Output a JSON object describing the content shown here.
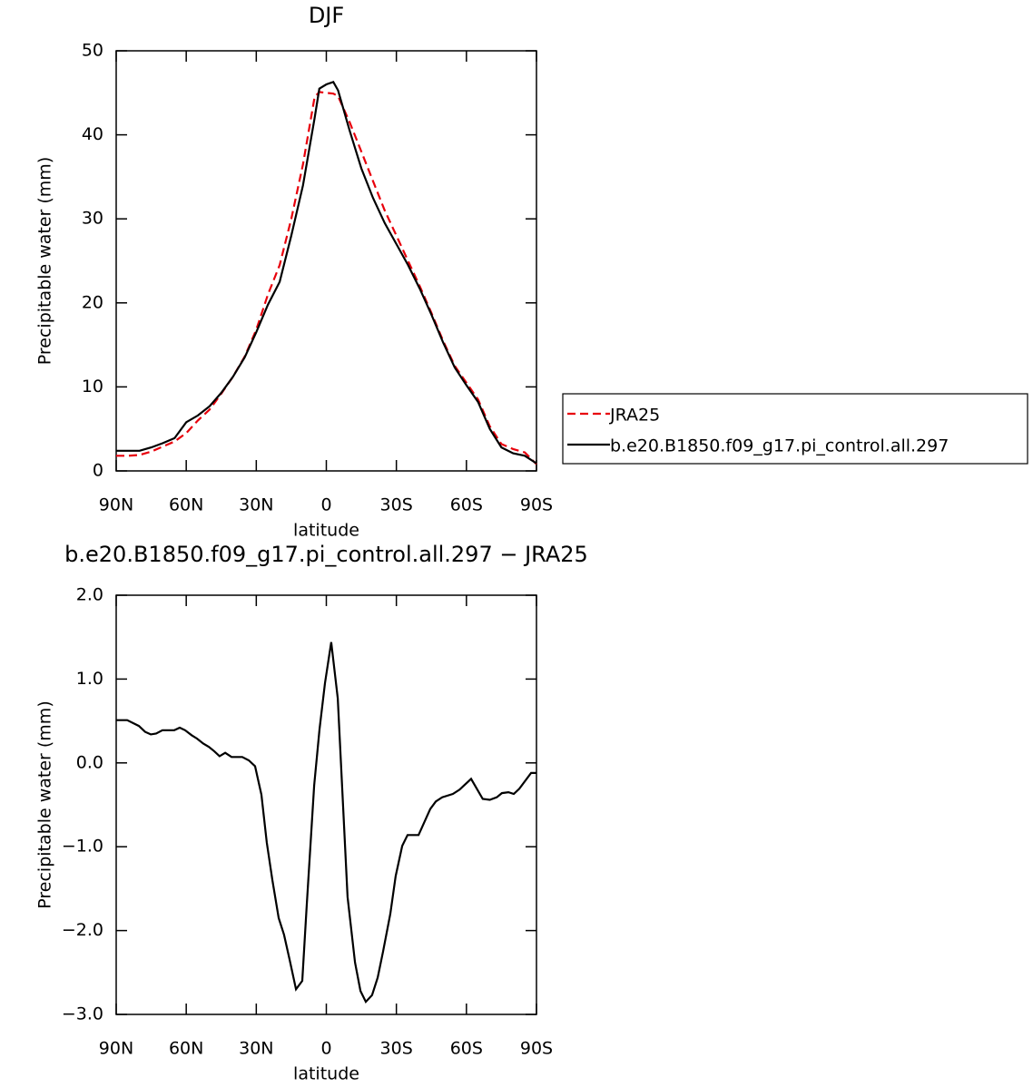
{
  "chart_data": [
    {
      "type": "line",
      "title": "DJF",
      "x_label": "latitude",
      "y_label": "Precipitable water (mm)",
      "x": [
        90,
        85,
        80,
        75,
        70,
        65,
        60,
        55,
        50,
        45,
        40,
        35,
        30,
        25,
        20,
        15,
        10,
        5,
        3,
        0,
        -3,
        -5,
        -10,
        -15,
        -20,
        -25,
        -30,
        -35,
        -40,
        -45,
        -50,
        -55,
        -60,
        -65,
        -70,
        -75,
        -80,
        -85,
        -90
      ],
      "series": [
        {
          "name": "JRA25",
          "color": "#e8000b",
          "linestyle": "dashed",
          "values": [
            1.8,
            1.8,
            1.9,
            2.3,
            2.9,
            3.5,
            4.5,
            6,
            7.3,
            9.2,
            11.2,
            13.6,
            16.8,
            21,
            24.5,
            30,
            36.5,
            44.5,
            45.1,
            45,
            44.9,
            44.6,
            41.5,
            38,
            34.5,
            31,
            28,
            25,
            22,
            18.8,
            15.5,
            12.5,
            10.5,
            8.5,
            5.3,
            3.2,
            2.6,
            2.2,
            0.8
          ]
        },
        {
          "name": "b.e20.B1850.f09_g17.pi_control.all.297",
          "color": "#000000",
          "linestyle": "solid",
          "values": [
            2.4,
            2.4,
            2.4,
            2.8,
            3.3,
            3.9,
            5.8,
            6.6,
            7.7,
            9.3,
            11.2,
            13.5,
            16.5,
            19.8,
            22.5,
            28,
            34,
            42,
            45.5,
            46,
            46.3,
            45.3,
            40.5,
            36,
            32.5,
            29.5,
            27,
            24.5,
            21.7,
            18.6,
            15.3,
            12.3,
            10.2,
            8.2,
            5,
            2.8,
            2.1,
            1.8,
            0.9
          ]
        }
      ],
      "xlim": [
        90,
        -90
      ],
      "xticks": [
        {
          "value": 90,
          "label": "90N"
        },
        {
          "value": 60,
          "label": "60N"
        },
        {
          "value": 30,
          "label": "30N"
        },
        0,
        {
          "value": -30,
          "label": "30S"
        },
        {
          "value": -60,
          "label": "60S"
        },
        {
          "value": -90,
          "label": "90S"
        }
      ],
      "ylim": [
        0,
        50
      ],
      "yticks": [
        0,
        10,
        20,
        30,
        40,
        50
      ],
      "legend": "right"
    },
    {
      "type": "line",
      "title": "b.e20.B1850.f09_g17.pi_control.all.297 − JRA25",
      "x_label": "latitude",
      "y_label": "Precipitable water (mm)",
      "x": [
        90,
        85.3,
        80.3,
        77.6,
        75.2,
        72.9,
        70.2,
        67.8,
        65.1,
        62.8,
        60.5,
        57.7,
        55.4,
        52.7,
        50.3,
        48,
        45.7,
        43.3,
        40.6,
        36,
        33.2,
        30.5,
        27.8,
        25.5,
        23.1,
        20.4,
        18.1,
        15.7,
        13,
        10.3,
        8.4,
        5.2,
        2.9,
        0.6,
        -2.1,
        -4.9,
        -9.1,
        -12.3,
        -14.6,
        -16.9,
        -19.6,
        -22,
        -24.3,
        -27.4,
        -29.7,
        -32.5,
        -34.8,
        -39.5,
        -44.5,
        -46.9,
        -49.6,
        -54.2,
        -57,
        -62,
        -67,
        -70,
        -73,
        -75.2,
        -78,
        -80.3,
        -82.6,
        -87.7,
        -90
      ],
      "color": "#000000",
      "values": [
        0.51,
        0.51,
        0.44,
        0.37,
        0.34,
        0.35,
        0.39,
        0.39,
        0.39,
        0.42,
        0.39,
        0.33,
        0.29,
        0.23,
        0.19,
        0.14,
        0.08,
        0.12,
        0.07,
        0.07,
        0.03,
        -0.04,
        -0.38,
        -0.95,
        -1.4,
        -1.85,
        -2.05,
        -2.35,
        -2.7,
        -2.6,
        -1.7,
        -0.27,
        0.4,
        0.95,
        1.44,
        0.77,
        -1.6,
        -2.38,
        -2.72,
        -2.85,
        -2.77,
        -2.56,
        -2.25,
        -1.8,
        -1.35,
        -0.99,
        -0.86,
        -0.86,
        -0.55,
        -0.46,
        -0.41,
        -0.37,
        -0.32,
        -0.19,
        -0.43,
        -0.44,
        -0.41,
        -0.36,
        -0.35,
        -0.37,
        -0.31,
        -0.12,
        -0.12
      ],
      "xlim": [
        90,
        -90
      ],
      "xticks": [
        {
          "value": 90,
          "label": "90N"
        },
        {
          "value": 60,
          "label": "60N"
        },
        {
          "value": 30,
          "label": "30N"
        },
        0,
        {
          "value": -30,
          "label": "30S"
        },
        {
          "value": -60,
          "label": "60S"
        },
        {
          "value": -90,
          "label": "90S"
        }
      ],
      "ylim": [
        -3,
        2
      ],
      "yticks": [
        {
          "value": -3,
          "label": "−3.0"
        },
        {
          "value": -2,
          "label": "−2.0"
        },
        {
          "value": -1,
          "label": "−1.0"
        },
        {
          "value": 0,
          "label": "0.0"
        },
        {
          "value": 1,
          "label": "1.0"
        },
        {
          "value": 2,
          "label": "2.0"
        }
      ]
    }
  ]
}
